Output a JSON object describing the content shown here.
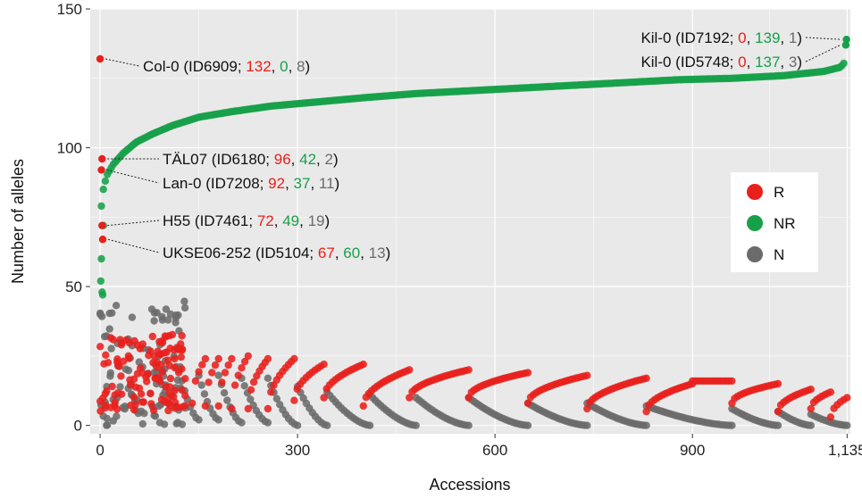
{
  "chart_data": {
    "type": "scatter",
    "xlabel": "Accessions",
    "ylabel": "Number of alleles",
    "xlim": [
      -15,
      1140
    ],
    "ylim": [
      -3,
      150
    ],
    "x_ticks": [
      0,
      300,
      600,
      900,
      1135
    ],
    "x_tick_labels": [
      "0",
      "300",
      "600",
      "900",
      "1,135"
    ],
    "y_ticks": [
      0,
      50,
      100,
      150
    ],
    "y_tick_labels": [
      "0",
      "50",
      "100",
      "150"
    ],
    "grid": true,
    "legend_position": "right",
    "colors": {
      "R": "#e8201c",
      "NR": "#17a04a",
      "N": "#6b6b6b",
      "panel": "#e9e9e9",
      "grid": "#ffffff"
    },
    "legend": [
      {
        "key": "R",
        "label": "R"
      },
      {
        "key": "NR",
        "label": "NR"
      },
      {
        "key": "N",
        "label": "N"
      }
    ],
    "nr_curve": {
      "x": [
        2,
        5,
        10,
        20,
        35,
        55,
        80,
        110,
        150,
        200,
        260,
        330,
        400,
        480,
        560,
        640,
        720,
        800,
        880,
        960,
        1040,
        1100,
        1125,
        1132
      ],
      "y": [
        79,
        85,
        90,
        94,
        98,
        102,
        105,
        108,
        111,
        113,
        115,
        116.5,
        118,
        119.5,
        120.5,
        121.5,
        122.5,
        123.5,
        124.5,
        125,
        126,
        127.5,
        129,
        131
      ]
    },
    "r_segments": [
      {
        "x0": 140,
        "x1": 160,
        "y0": 8,
        "y1": 24
      },
      {
        "x0": 160,
        "x1": 180,
        "y0": 7,
        "y1": 24
      },
      {
        "x0": 180,
        "x1": 200,
        "y0": 7,
        "y1": 24
      },
      {
        "x0": 200,
        "x1": 225,
        "y0": 6,
        "y1": 25
      },
      {
        "x0": 225,
        "x1": 255,
        "y0": 6,
        "y1": 24
      },
      {
        "x0": 255,
        "x1": 295,
        "y0": 6,
        "y1": 24
      },
      {
        "x0": 295,
        "x1": 340,
        "y0": 9,
        "y1": 22
      },
      {
        "x0": 340,
        "x1": 400,
        "y0": 10,
        "y1": 22
      },
      {
        "x0": 400,
        "x1": 470,
        "y0": 7,
        "y1": 20
      },
      {
        "x0": 470,
        "x1": 560,
        "y0": 10,
        "y1": 20
      },
      {
        "x0": 560,
        "x1": 650,
        "y0": 10,
        "y1": 19
      },
      {
        "x0": 650,
        "x1": 740,
        "y0": 8,
        "y1": 18
      },
      {
        "x0": 740,
        "x1": 830,
        "y0": 6,
        "y1": 17
      },
      {
        "x0": 830,
        "x1": 900,
        "y0": 5,
        "y1": 15
      },
      {
        "x0": 900,
        "x1": 960,
        "y0": 16,
        "y1": 16
      },
      {
        "x0": 960,
        "x1": 1030,
        "y0": 8,
        "y1": 15
      },
      {
        "x0": 1030,
        "x1": 1080,
        "y0": 5,
        "y1": 13
      },
      {
        "x0": 1080,
        "x1": 1110,
        "y0": 6,
        "y1": 12
      },
      {
        "x0": 1110,
        "x1": 1135,
        "y0": 3,
        "y1": 10
      }
    ],
    "n_segments": [
      {
        "x0": 120,
        "x1": 150,
        "y0": 20,
        "y1": 2
      },
      {
        "x0": 150,
        "x1": 180,
        "y0": 18,
        "y1": 2
      },
      {
        "x0": 180,
        "x1": 215,
        "y0": 18,
        "y1": 1
      },
      {
        "x0": 215,
        "x1": 255,
        "y0": 17,
        "y1": 1
      },
      {
        "x0": 255,
        "x1": 300,
        "y0": 17,
        "y1": 0
      },
      {
        "x0": 300,
        "x1": 345,
        "y0": 14,
        "y1": 0
      },
      {
        "x0": 345,
        "x1": 410,
        "y0": 12,
        "y1": 0
      },
      {
        "x0": 410,
        "x1": 480,
        "y0": 11,
        "y1": 0
      },
      {
        "x0": 480,
        "x1": 560,
        "y0": 10,
        "y1": 0
      },
      {
        "x0": 560,
        "x1": 650,
        "y0": 10,
        "y1": 0
      },
      {
        "x0": 650,
        "x1": 740,
        "y0": 8,
        "y1": 0
      },
      {
        "x0": 740,
        "x1": 830,
        "y0": 8,
        "y1": 0
      },
      {
        "x0": 830,
        "x1": 960,
        "y0": 7,
        "y1": 0
      },
      {
        "x0": 960,
        "x1": 1030,
        "y0": 6,
        "y1": 0
      },
      {
        "x0": 1030,
        "x1": 1080,
        "y0": 5,
        "y1": 0
      },
      {
        "x0": 1080,
        "x1": 1135,
        "y0": 4,
        "y1": 0
      }
    ],
    "early_cluster_x": [
      0,
      130
    ],
    "early_cluster_r_y": [
      5,
      33
    ],
    "early_cluster_n_y": [
      0,
      45
    ],
    "highlighted_points": [
      {
        "x": 0,
        "y": 132,
        "series": "R"
      },
      {
        "x": 3,
        "y": 96,
        "series": "R"
      },
      {
        "x": 2,
        "y": 92,
        "series": "R"
      },
      {
        "x": 3,
        "y": 72,
        "series": "R"
      },
      {
        "x": 4,
        "y": 67,
        "series": "R"
      },
      {
        "x": 1134,
        "y": 139,
        "series": "NR"
      },
      {
        "x": 1133,
        "y": 137,
        "series": "NR"
      }
    ],
    "annotations": [
      {
        "point_index": 0,
        "align": "left",
        "parts": [
          {
            "text": "Col-0 (ID6909; ",
            "color": "black"
          },
          {
            "text": "132",
            "color": "R"
          },
          {
            "text": ", ",
            "color": "black"
          },
          {
            "text": "0",
            "color": "NR"
          },
          {
            "text": ", ",
            "color": "black"
          },
          {
            "text": "8",
            "color": "N"
          },
          {
            "text": ")",
            "color": "black"
          }
        ]
      },
      {
        "point_index": 1,
        "align": "left",
        "parts": [
          {
            "text": "TÄL07 (ID6180; ",
            "color": "black"
          },
          {
            "text": "96",
            "color": "R"
          },
          {
            "text": ", ",
            "color": "black"
          },
          {
            "text": "42",
            "color": "NR"
          },
          {
            "text": ", ",
            "color": "black"
          },
          {
            "text": "2",
            "color": "N"
          },
          {
            "text": ")",
            "color": "black"
          }
        ]
      },
      {
        "point_index": 2,
        "align": "left",
        "parts": [
          {
            "text": "Lan-0 (ID7208; ",
            "color": "black"
          },
          {
            "text": "92",
            "color": "R"
          },
          {
            "text": ", ",
            "color": "black"
          },
          {
            "text": "37",
            "color": "NR"
          },
          {
            "text": ", ",
            "color": "black"
          },
          {
            "text": "11",
            "color": "N"
          },
          {
            "text": ")",
            "color": "black"
          }
        ]
      },
      {
        "point_index": 3,
        "align": "left",
        "parts": [
          {
            "text": "H55 (ID7461; ",
            "color": "black"
          },
          {
            "text": "72",
            "color": "R"
          },
          {
            "text": ", ",
            "color": "black"
          },
          {
            "text": "49",
            "color": "NR"
          },
          {
            "text": ", ",
            "color": "black"
          },
          {
            "text": "19",
            "color": "N"
          },
          {
            "text": ")",
            "color": "black"
          }
        ]
      },
      {
        "point_index": 4,
        "align": "left",
        "parts": [
          {
            "text": "UKSE06-252 (ID5104; ",
            "color": "black"
          },
          {
            "text": "67",
            "color": "R"
          },
          {
            "text": ", ",
            "color": "black"
          },
          {
            "text": "60",
            "color": "NR"
          },
          {
            "text": ", ",
            "color": "black"
          },
          {
            "text": "13",
            "color": "N"
          },
          {
            "text": ")",
            "color": "black"
          }
        ]
      },
      {
        "point_index": 5,
        "align": "right",
        "parts": [
          {
            "text": "Kil-0 (ID7192; ",
            "color": "black"
          },
          {
            "text": "0",
            "color": "R"
          },
          {
            "text": ", ",
            "color": "black"
          },
          {
            "text": "139",
            "color": "NR"
          },
          {
            "text": ", ",
            "color": "black"
          },
          {
            "text": "1",
            "color": "N"
          },
          {
            "text": ")",
            "color": "black"
          }
        ]
      },
      {
        "point_index": 6,
        "align": "right",
        "parts": [
          {
            "text": "Kil-0 (ID5748; ",
            "color": "black"
          },
          {
            "text": "0",
            "color": "R"
          },
          {
            "text": ", ",
            "color": "black"
          },
          {
            "text": "137",
            "color": "NR"
          },
          {
            "text": ", ",
            "color": "black"
          },
          {
            "text": "3",
            "color": "N"
          },
          {
            "text": ")",
            "color": "black"
          }
        ]
      }
    ]
  }
}
